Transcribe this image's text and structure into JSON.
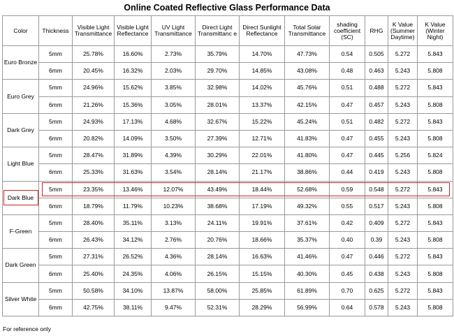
{
  "title": "Online Coated Reflective Glass Performance Data",
  "headers": [
    "Color",
    "Thickness",
    "Visible Light Transmittance",
    "Visible Light Reflectance",
    "UV Light Transmittance",
    "Direct Light Transmittanc e",
    "Direct Sunlight Reflectance",
    "Total Solar Transmittance",
    "shading coefficient (SC)",
    "RHG",
    "K Value (Summer Daytime)",
    "K Value (Winter Night)"
  ],
  "groups": [
    {
      "color": "Euro Bronze",
      "rows": [
        [
          "5mm",
          "25.78%",
          "16.60%",
          "2.73%",
          "35.79%",
          "14.70%",
          "47.73%",
          "0.54",
          "0.505",
          "5.272",
          "5.843"
        ],
        [
          "6mm",
          "20.45%",
          "16.32%",
          "2.03%",
          "29.70%",
          "14.85%",
          "43.08%",
          "0.48",
          "0.463",
          "5.243",
          "5.808"
        ]
      ]
    },
    {
      "color": "Euro Grey",
      "rows": [
        [
          "5mm",
          "24.96%",
          "15.62%",
          "3.85%",
          "32.98%",
          "14.02%",
          "45.76%",
          "0.51",
          "0.488",
          "5.272",
          "5.843"
        ],
        [
          "6mm",
          "21.26%",
          "15.36%",
          "3.05%",
          "28.01%",
          "13.37%",
          "42.15%",
          "0.47",
          "0.457",
          "5.243",
          "5.808"
        ]
      ]
    },
    {
      "color": "Dark Grey",
      "rows": [
        [
          "5mm",
          "24.93%",
          "17.13%",
          "4.68%",
          "32.67%",
          "15.22%",
          "45.24%",
          "0.51",
          "0.482",
          "5.272",
          "5.843"
        ],
        [
          "6mm",
          "20.82%",
          "14.09%",
          "3.50%",
          "27.39%",
          "12.71%",
          "41.83%",
          "0.47",
          "0.455",
          "5.243",
          "5.808"
        ]
      ]
    },
    {
      "color": "Light Blue",
      "rows": [
        [
          "5mm",
          "28.47%",
          "31.89%",
          "4.39%",
          "30.29%",
          "22.01%",
          "41.80%",
          "0.47",
          "0.445",
          "5.256",
          "5.824"
        ],
        [
          "6mm",
          "25.33%",
          "31.63%",
          "3.54%",
          "28.14%",
          "21.17%",
          "38.86%",
          "0.44",
          "0.419",
          "5.243",
          "5.808"
        ]
      ]
    },
    {
      "color": "Dark Blue",
      "rows": [
        [
          "5mm",
          "23.35%",
          "13.46%",
          "12.07%",
          "43.49%",
          "18.44%",
          "52.68%",
          "0.59",
          "0.548",
          "5.272",
          "5.843"
        ],
        [
          "6mm",
          "18.79%",
          "11.79%",
          "10.23%",
          "38.68%",
          "17.19%",
          "49.32%",
          "0.55",
          "0.517",
          "5.243",
          "5.808"
        ]
      ]
    },
    {
      "color": "F-Green",
      "rows": [
        [
          "5mm",
          "28.40%",
          "35.11%",
          "3.13%",
          "24.11%",
          "19.91%",
          "37.61%",
          "0.42",
          "0.409",
          "5.272",
          "5.843"
        ],
        [
          "6mm",
          "26.43%",
          "34.12%",
          "2.76%",
          "20.76%",
          "18.66%",
          "35.37%",
          "0.40",
          "0.39",
          "5.243",
          "5.808"
        ]
      ]
    },
    {
      "color": "Dark Green",
      "rows": [
        [
          "5mm",
          "27.31%",
          "26.52%",
          "4.36%",
          "28.14%",
          "16.63%",
          "41.46%",
          "0.47",
          "0.446",
          "5.272",
          "5.843"
        ],
        [
          "6mm",
          "25.40%",
          "24.35%",
          "4.06%",
          "26.15%",
          "15.15%",
          "40.30%",
          "0.45",
          "0.438",
          "5.243",
          "5.808"
        ]
      ]
    },
    {
      "color": "Silver White",
      "rows": [
        [
          "5mm",
          "50.58%",
          "34.10%",
          "13.87%",
          "58.00%",
          "25.85%",
          "61.89%",
          "0.70",
          "0.625",
          "5.272",
          "5.843"
        ],
        [
          "6mm",
          "42.75%",
          "38.11%",
          "9.47%",
          "52.31%",
          "28.29%",
          "56.99%",
          "0.64",
          "0.578",
          "5.243",
          "5.808"
        ]
      ]
    }
  ],
  "note": "For reference only",
  "highlight_color": "#cc2222"
}
